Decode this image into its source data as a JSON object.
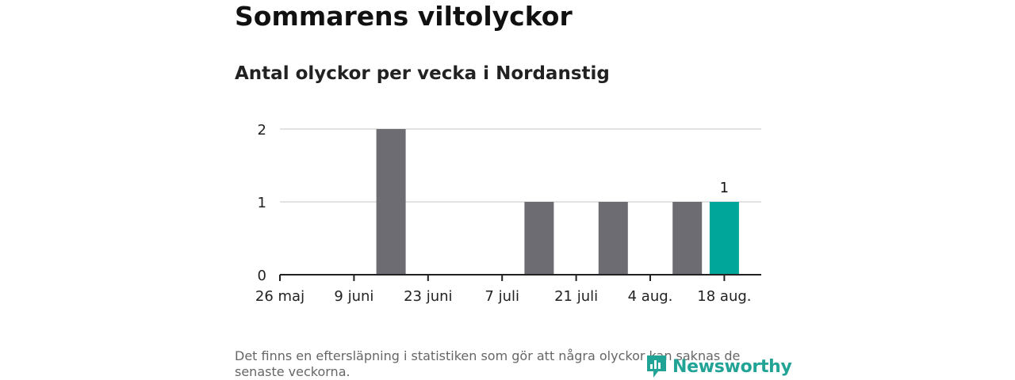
{
  "title": "Sommarens viltolyckor",
  "subtitle": "Antal olyckor per vecka i Nordanstig",
  "footnote": "Det finns en eftersläpning i statistiken som gör att några olyckor kan saknas de senaste veckorna.",
  "logo_text": "Newsworthy",
  "colors": {
    "bar": "#6d6c72",
    "highlight": "#00a699",
    "grid": "#d9d9d9",
    "axis": "#222222",
    "logo": "#21a396"
  },
  "chart_data": {
    "type": "bar",
    "title": "Antal olyckor per vecka i Nordanstig",
    "xlabel": "",
    "ylabel": "",
    "ylim": [
      0,
      2
    ],
    "yticks": [
      "0",
      "1",
      "2"
    ],
    "x_tick_labels": [
      "26 maj",
      "9 juni",
      "23 juni",
      "7 juli",
      "21 juli",
      "4 aug.",
      "18 aug."
    ],
    "categories": [
      "26 maj",
      "2 juni",
      "9 juni",
      "16 juni",
      "23 juni",
      "30 juni",
      "7 juli",
      "14 juli",
      "21 juli",
      "28 juli",
      "4 aug.",
      "11 aug.",
      "18 aug."
    ],
    "values": [
      0,
      0,
      0,
      2,
      0,
      0,
      0,
      1,
      0,
      1,
      0,
      1,
      1
    ],
    "highlight_last": true,
    "data_labels": [
      {
        "category": "18 aug.",
        "text": "1"
      }
    ],
    "grid": true
  }
}
